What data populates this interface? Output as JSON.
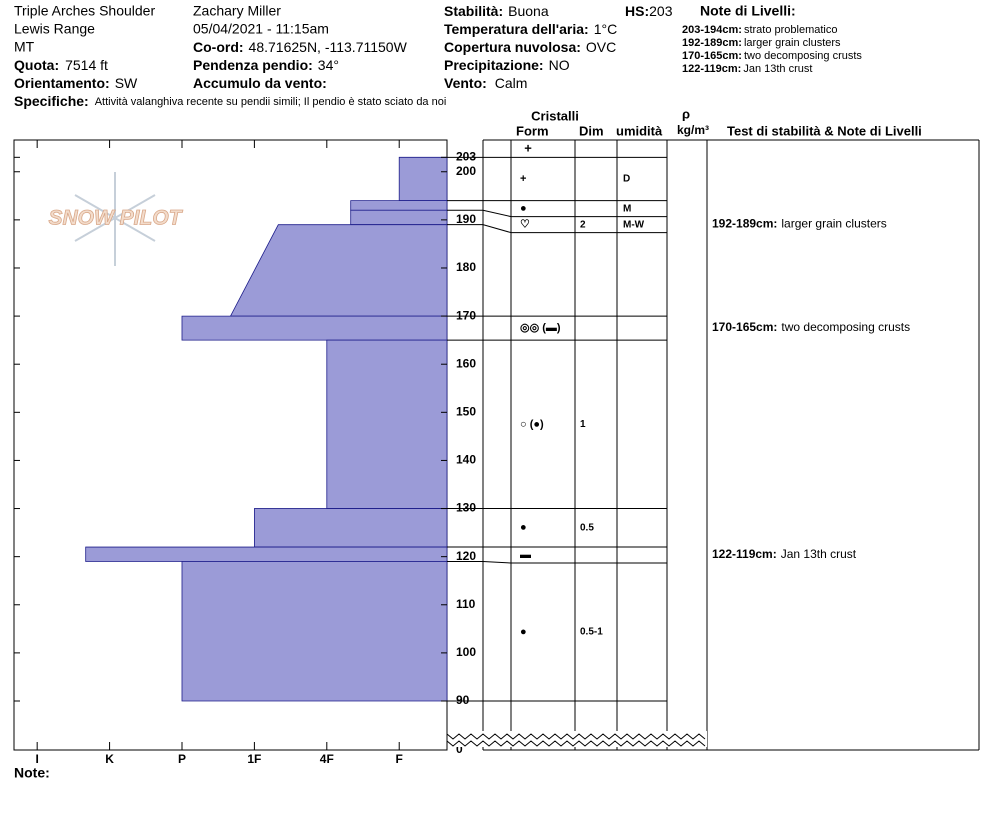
{
  "header": {
    "site": "Triple Arches Shoulder",
    "range": "Lewis Range",
    "state": "MT",
    "elevation": {
      "label": "Quota:",
      "value": "7514 ft"
    },
    "aspect": {
      "label": "Orientamento:",
      "value": "SW"
    },
    "observer": "Zachary Miller",
    "datetime": "05/04/2021 - 11:15am",
    "coords": {
      "label": "Co-ord:",
      "value": "48.71625N, -113.71150W"
    },
    "slope": {
      "label": "Pendenza pendio:",
      "value": "34°"
    },
    "wind_loading": {
      "label": "Accumulo da vento:"
    },
    "stability": {
      "label": "Stabilità:",
      "value": "Buona"
    },
    "hs": {
      "label": "HS:",
      "value": "203"
    },
    "air_temp": {
      "label": "Temperatura dell'aria:",
      "value": "1°C"
    },
    "cloud": {
      "label": "Copertura nuvolosa:",
      "value": "OVC"
    },
    "precip": {
      "label": "Precipitazione:",
      "value": "NO"
    },
    "wind": {
      "label": "Vento:",
      "value": "Calm"
    },
    "layer_notes_title": "Note di Livelli:",
    "specifics": {
      "label": "Specifiche:",
      "value": "Attività valanghiva recente su pendii simili;  Il pendio è stato sciato da noi"
    }
  },
  "layer_notes": [
    {
      "range": "203-194cm:",
      "text": "strato problematico"
    },
    {
      "range": "192-189cm:",
      "text": "larger grain clusters"
    },
    {
      "range": "170-165cm:",
      "text": "two decomposing crusts"
    },
    {
      "range": "122-119cm:",
      "text": "Jan 13th crust"
    }
  ],
  "table_header": {
    "crystals": "Cristalli",
    "form": "Form",
    "size": "Dim",
    "moisture": "umidità",
    "density_symbol": "ρ",
    "density_unit": "kg/m³",
    "notes": "Test di stabilità & Note di Livelli"
  },
  "surface_form": "+",
  "note_label": "Note:",
  "logo": "SNOW PILOT",
  "chart_data": {
    "type": "snow-profile",
    "ylim": [
      0,
      206.6
    ],
    "axis_break": 90,
    "yticks": [
      0,
      90,
      100,
      110,
      120,
      130,
      140,
      150,
      160,
      170,
      180,
      190,
      200,
      203
    ],
    "xlim": [
      0.34,
      6.32
    ],
    "xticks": [
      {
        "value": 1,
        "label": "F"
      },
      {
        "value": 2,
        "label": "4F"
      },
      {
        "value": 3,
        "label": "1F"
      },
      {
        "value": 4,
        "label": "P"
      },
      {
        "value": 5,
        "label": "K"
      },
      {
        "value": 6,
        "label": "I"
      }
    ],
    "color": "#9b9bd7",
    "layers": [
      {
        "top": 203,
        "bottom": 194,
        "hardness": 1,
        "form": "+",
        "moisture": "D"
      },
      {
        "top": 194,
        "bottom": 192,
        "hardness": 1.67,
        "form": "●",
        "moisture": "M"
      },
      {
        "top": 192,
        "bottom": 189,
        "hardness": 1.67,
        "form": "♡",
        "size": "2",
        "moisture": "M-W"
      },
      {
        "top": 189,
        "bottom": 170,
        "hardness": 2.67,
        "hardness_bottom": 3.33
      },
      {
        "top": 170,
        "bottom": 165,
        "hardness": 4,
        "form": "◎◎ (▬)"
      },
      {
        "top": 165,
        "bottom": 130,
        "hardness": 2,
        "form": "○ (●)",
        "size": "1"
      },
      {
        "top": 130,
        "bottom": 122,
        "hardness": 3,
        "form": "●",
        "size": "0.5"
      },
      {
        "top": 122,
        "bottom": 119,
        "hardness": 5.33,
        "form": "▬"
      },
      {
        "top": 119,
        "bottom": 90,
        "hardness": 4,
        "form": "●",
        "size": "0.5-1"
      }
    ]
  }
}
